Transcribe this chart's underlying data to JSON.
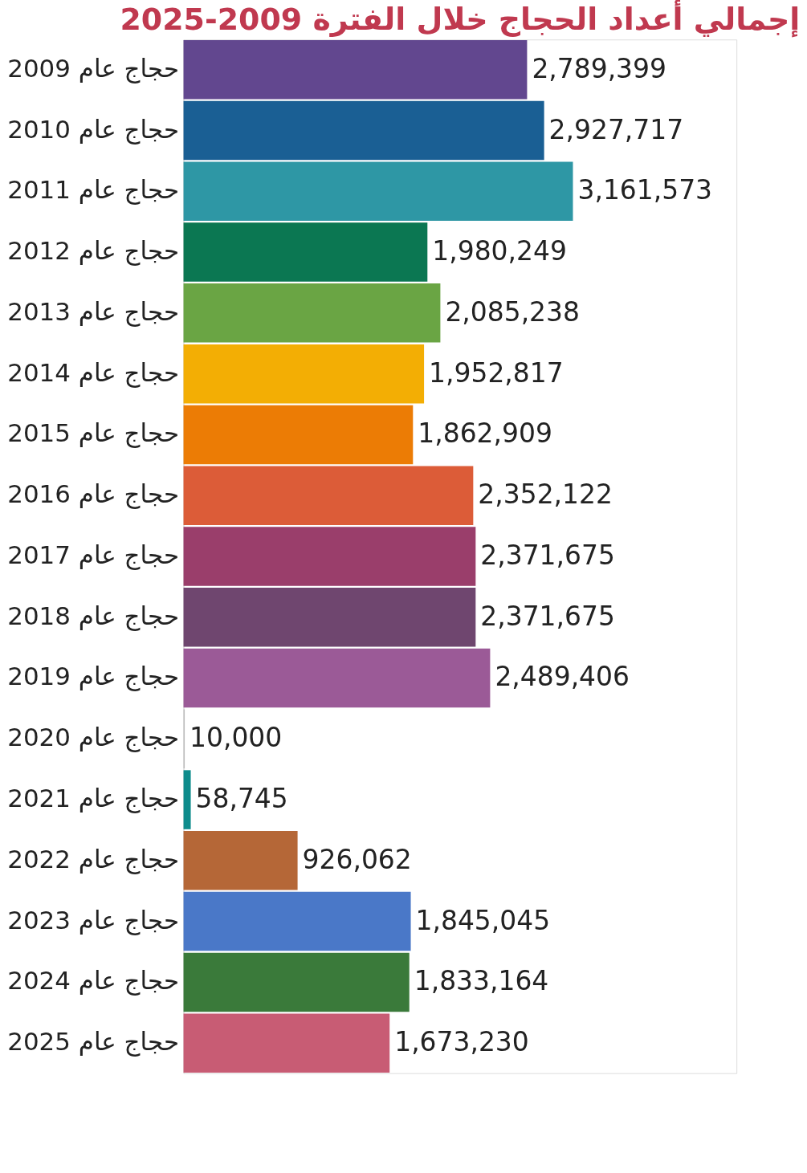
{
  "chart_data": {
    "type": "bar",
    "orientation": "horizontal",
    "title": "إجمالي أعداد الحجاج خلال الفترة 2009-2025",
    "categories": [
      "حجاج عام 2009",
      "حجاج عام 2010",
      "حجاج عام 2011",
      "حجاج عام 2012",
      "حجاج عام 2013",
      "حجاج عام 2014",
      "حجاج عام 2015",
      "حجاج عام 2016",
      "حجاج عام 2017",
      "حجاج عام 2018",
      "حجاج عام 2019",
      "حجاج عام 2020",
      "حجاج عام 2021",
      "حجاج عام 2022",
      "حجاج عام 2023",
      "حجاج عام 2024",
      "حجاج عام 2025"
    ],
    "values": [
      2789399,
      2927717,
      3161573,
      1980249,
      2085238,
      1952817,
      1862909,
      2352122,
      2371675,
      2371675,
      2489406,
      10000,
      58745,
      926062,
      1845045,
      1833164,
      1673230
    ],
    "colors": [
      "#62478f",
      "#1a5f94",
      "#2e97a5",
      "#0b7752",
      "#6aa544",
      "#f3ae04",
      "#ec7c05",
      "#dc5c38",
      "#9a3e6b",
      "#6f466f",
      "#9b5a97",
      "#bdbdbd",
      "#0e8c8c",
      "#b56737",
      "#4a78c8",
      "#3a7a3a",
      "#c85c74"
    ],
    "value_labels": [
      "2,789,399",
      "2,927,717",
      "3,161,573",
      "1,980,249",
      "2,085,238",
      "1,952,817",
      "1,862,909",
      "2,352,122",
      "2,371,675",
      "2,371,675",
      "2,489,406",
      "10,000",
      "58,745",
      "926,062",
      "1,845,045",
      "1,833,164",
      "1,673,230"
    ],
    "grid": false
  }
}
